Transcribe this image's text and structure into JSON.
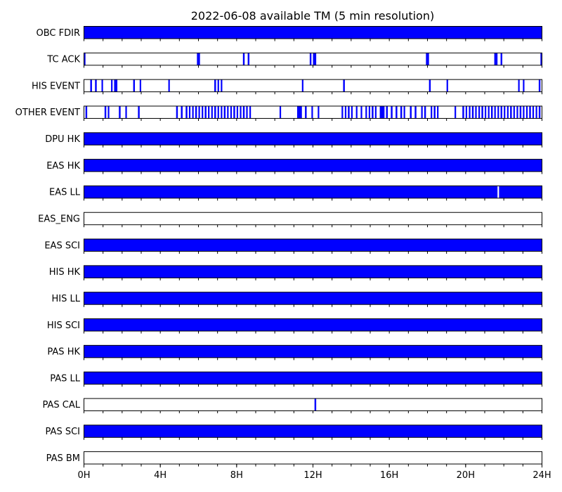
{
  "chart_data": {
    "type": "timeline",
    "title": "2022-06-08 available TM (5 min resolution)",
    "x_unit": "hours",
    "xlim": [
      0,
      24
    ],
    "x_ticks": [
      0,
      4,
      8,
      12,
      16,
      20,
      24
    ],
    "x_tick_labels": [
      "0H",
      "4H",
      "8H",
      "12H",
      "16H",
      "20H",
      "24H"
    ],
    "minor_tick_step_hours": 1,
    "colors": {
      "available": "#0000ff",
      "unavailable": "#ffffff",
      "frame": "#000000"
    },
    "rows": [
      {
        "name": "OBC FDIR",
        "intervals": [
          [
            0,
            24
          ]
        ]
      },
      {
        "name": "TC ACK",
        "intervals": [
          [
            0,
            0.08
          ],
          [
            5.92,
            6.08
          ],
          [
            8.33,
            8.42
          ],
          [
            8.58,
            8.67
          ],
          [
            11.83,
            11.92
          ],
          [
            12.0,
            12.17
          ],
          [
            17.92,
            18.08
          ],
          [
            21.5,
            21.67
          ],
          [
            21.83,
            21.92
          ],
          [
            23.92,
            24
          ]
        ]
      },
      {
        "name": "HIS EVENT",
        "intervals": [
          [
            0.33,
            0.42
          ],
          [
            0.58,
            0.67
          ],
          [
            0.92,
            1.0
          ],
          [
            1.42,
            1.5
          ],
          [
            1.58,
            1.75
          ],
          [
            2.58,
            2.67
          ],
          [
            2.92,
            3.0
          ],
          [
            4.42,
            4.5
          ],
          [
            6.83,
            6.92
          ],
          [
            7.0,
            7.08
          ],
          [
            7.17,
            7.25
          ],
          [
            11.42,
            11.5
          ],
          [
            13.58,
            13.67
          ],
          [
            18.08,
            18.17
          ],
          [
            19.0,
            19.08
          ],
          [
            22.75,
            22.83
          ],
          [
            23.0,
            23.08
          ],
          [
            23.83,
            23.92
          ]
        ]
      },
      {
        "name": "OTHER EVENT",
        "intervals": [
          [
            0.08,
            0.17
          ],
          [
            1.08,
            1.17
          ],
          [
            1.25,
            1.33
          ],
          [
            1.83,
            1.92
          ],
          [
            2.17,
            2.25
          ],
          [
            2.83,
            2.92
          ],
          [
            4.83,
            4.92
          ],
          [
            5.08,
            5.17
          ],
          [
            5.33,
            5.42
          ],
          [
            5.5,
            5.58
          ],
          [
            5.67,
            5.75
          ],
          [
            5.83,
            5.92
          ],
          [
            6.0,
            6.08
          ],
          [
            6.17,
            6.25
          ],
          [
            6.33,
            6.42
          ],
          [
            6.5,
            6.58
          ],
          [
            6.67,
            6.75
          ],
          [
            6.83,
            6.92
          ],
          [
            7.0,
            7.08
          ],
          [
            7.17,
            7.25
          ],
          [
            7.33,
            7.42
          ],
          [
            7.5,
            7.58
          ],
          [
            7.67,
            7.75
          ],
          [
            7.83,
            7.92
          ],
          [
            8.0,
            8.08
          ],
          [
            8.17,
            8.25
          ],
          [
            8.33,
            8.42
          ],
          [
            8.5,
            8.58
          ],
          [
            8.67,
            8.75
          ],
          [
            10.25,
            10.33
          ],
          [
            11.17,
            11.42
          ],
          [
            11.58,
            11.67
          ],
          [
            11.92,
            12.0
          ],
          [
            12.25,
            12.33
          ],
          [
            13.5,
            13.58
          ],
          [
            13.67,
            13.75
          ],
          [
            13.83,
            13.92
          ],
          [
            14.0,
            14.08
          ],
          [
            14.25,
            14.33
          ],
          [
            14.5,
            14.58
          ],
          [
            14.75,
            14.83
          ],
          [
            14.92,
            15.0
          ],
          [
            15.08,
            15.17
          ],
          [
            15.25,
            15.33
          ],
          [
            15.5,
            15.75
          ],
          [
            15.83,
            15.92
          ],
          [
            16.08,
            16.17
          ],
          [
            16.33,
            16.42
          ],
          [
            16.58,
            16.67
          ],
          [
            16.75,
            16.83
          ],
          [
            17.08,
            17.17
          ],
          [
            17.33,
            17.42
          ],
          [
            17.67,
            17.75
          ],
          [
            17.83,
            17.92
          ],
          [
            18.17,
            18.25
          ],
          [
            18.33,
            18.42
          ],
          [
            18.5,
            18.58
          ],
          [
            19.42,
            19.5
          ],
          [
            19.83,
            19.92
          ],
          [
            20.0,
            20.08
          ],
          [
            20.17,
            20.25
          ],
          [
            20.33,
            20.42
          ],
          [
            20.5,
            20.58
          ],
          [
            20.67,
            20.75
          ],
          [
            20.83,
            20.92
          ],
          [
            21.0,
            21.08
          ],
          [
            21.17,
            21.25
          ],
          [
            21.33,
            21.42
          ],
          [
            21.5,
            21.58
          ],
          [
            21.67,
            21.75
          ],
          [
            21.83,
            21.92
          ],
          [
            22.0,
            22.08
          ],
          [
            22.17,
            22.25
          ],
          [
            22.33,
            22.42
          ],
          [
            22.5,
            22.58
          ],
          [
            22.67,
            22.75
          ],
          [
            22.83,
            22.92
          ],
          [
            23.0,
            23.08
          ],
          [
            23.17,
            23.25
          ],
          [
            23.33,
            23.42
          ],
          [
            23.5,
            23.58
          ],
          [
            23.67,
            23.75
          ],
          [
            23.83,
            23.92
          ]
        ]
      },
      {
        "name": "DPU HK",
        "intervals": [
          [
            0,
            24
          ]
        ]
      },
      {
        "name": "EAS HK",
        "intervals": [
          [
            0,
            24
          ]
        ]
      },
      {
        "name": "EAS LL",
        "intervals": [
          [
            0,
            21.67
          ],
          [
            21.75,
            24
          ]
        ]
      },
      {
        "name": "EAS_ENG",
        "intervals": []
      },
      {
        "name": "EAS SCI",
        "intervals": [
          [
            0,
            24
          ]
        ]
      },
      {
        "name": "HIS HK",
        "intervals": [
          [
            0,
            24
          ]
        ]
      },
      {
        "name": "HIS LL",
        "intervals": [
          [
            0,
            24
          ]
        ]
      },
      {
        "name": "HIS SCI",
        "intervals": [
          [
            0,
            24
          ]
        ]
      },
      {
        "name": "PAS HK",
        "intervals": [
          [
            0,
            24
          ]
        ]
      },
      {
        "name": "PAS LL",
        "intervals": [
          [
            0,
            24
          ]
        ]
      },
      {
        "name": "PAS CAL",
        "intervals": [
          [
            12.08,
            12.17
          ]
        ]
      },
      {
        "name": "PAS SCI",
        "intervals": [
          [
            0,
            24
          ]
        ]
      },
      {
        "name": "PAS BM",
        "intervals": []
      }
    ]
  }
}
